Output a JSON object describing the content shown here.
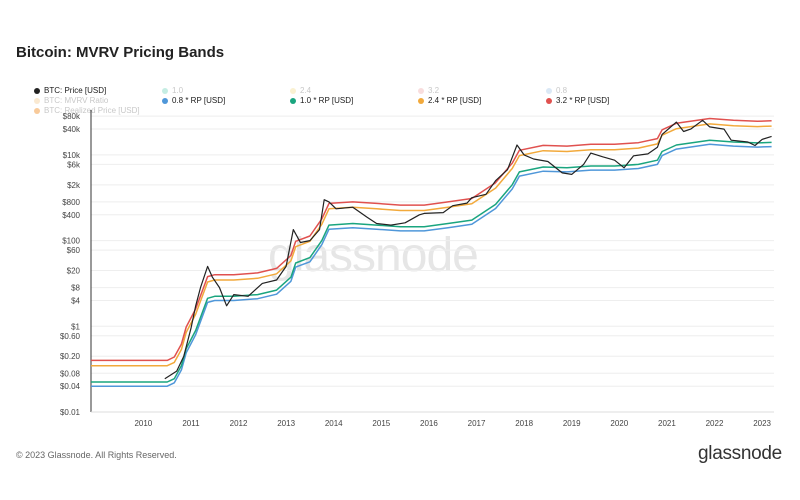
{
  "header": {
    "title": "Bitcoin: MVRV Pricing Bands"
  },
  "legend": {
    "items": [
      {
        "label": "BTC: Price [USD]",
        "color": "#222222",
        "muted": false
      },
      {
        "label": "1.0",
        "color": "#7fd6c0",
        "muted": true
      },
      {
        "label": "2.4",
        "color": "#f5e19a",
        "muted": true
      },
      {
        "label": "3.2",
        "color": "#efb3b3",
        "muted": true
      },
      {
        "label": "0.8",
        "color": "#aecbe8",
        "muted": true
      },
      {
        "label": "BTC: MVRV Ratio",
        "color": "#f3cf9a",
        "muted": true
      },
      {
        "label": "0.8 * RP [USD]",
        "color": "#4f97d9",
        "muted": false
      },
      {
        "label": "1.0 * RP [USD]",
        "color": "#1aa57f",
        "muted": false
      },
      {
        "label": "2.4 * RP [USD]",
        "color": "#f2a93b",
        "muted": false
      },
      {
        "label": "3.2 * RP [USD]",
        "color": "#e0514f",
        "muted": false
      },
      {
        "label": "BTC: Realized Price [USD]",
        "color": "#f08a1e",
        "muted": true
      }
    ]
  },
  "footer": {
    "copyright": "© 2023 Glassnode. All Rights Reserved.",
    "brand": "glassnode"
  },
  "watermark": "glassnode",
  "chart_data": {
    "type": "line",
    "title": "Bitcoin: MVRV Pricing Bands",
    "y_scale": "log",
    "ylim": [
      0.01,
      100000
    ],
    "xlim": [
      2009.0,
      2023.35
    ],
    "y_ticks": [
      {
        "label": "$80k",
        "value": 80000
      },
      {
        "label": "$40k",
        "value": 40000
      },
      {
        "label": "$10k",
        "value": 10000
      },
      {
        "label": "$6k",
        "value": 6000
      },
      {
        "label": "$2k",
        "value": 2000
      },
      {
        "label": "$800",
        "value": 800
      },
      {
        "label": "$400",
        "value": 400
      },
      {
        "label": "$100",
        "value": 100
      },
      {
        "label": "$60",
        "value": 60
      },
      {
        "label": "$20",
        "value": 20
      },
      {
        "label": "$8",
        "value": 8
      },
      {
        "label": "$4",
        "value": 4
      },
      {
        "label": "$1",
        "value": 1
      },
      {
        "label": "$0.60",
        "value": 0.6
      },
      {
        "label": "$0.20",
        "value": 0.2
      },
      {
        "label": "$0.08",
        "value": 0.08
      },
      {
        "label": "$0.04",
        "value": 0.04
      },
      {
        "label": "$0.01",
        "value": 0.01
      }
    ],
    "x_ticks": [
      "2010",
      "2011",
      "2012",
      "2013",
      "2014",
      "2015",
      "2016",
      "2017",
      "2018",
      "2019",
      "2020",
      "2021",
      "2022",
      "2023"
    ],
    "realized_price": [
      [
        2009.0,
        0.05
      ],
      [
        2010.6,
        0.05
      ],
      [
        2010.75,
        0.06
      ],
      [
        2010.9,
        0.12
      ],
      [
        2011.0,
        0.3
      ],
      [
        2011.2,
        0.8
      ],
      [
        2011.45,
        4.5
      ],
      [
        2011.6,
        5.0
      ],
      [
        2012.0,
        5.0
      ],
      [
        2012.5,
        5.5
      ],
      [
        2012.9,
        7.0
      ],
      [
        2013.2,
        14
      ],
      [
        2013.3,
        30
      ],
      [
        2013.6,
        40
      ],
      [
        2013.85,
        100
      ],
      [
        2014.0,
        230
      ],
      [
        2014.5,
        250
      ],
      [
        2015.0,
        230
      ],
      [
        2015.5,
        210
      ],
      [
        2016.0,
        210
      ],
      [
        2016.5,
        250
      ],
      [
        2017.0,
        300
      ],
      [
        2017.5,
        700
      ],
      [
        2017.85,
        2000
      ],
      [
        2018.0,
        4000
      ],
      [
        2018.5,
        5200
      ],
      [
        2019.0,
        5000
      ],
      [
        2019.5,
        5500
      ],
      [
        2020.0,
        5500
      ],
      [
        2020.5,
        6000
      ],
      [
        2020.9,
        7500
      ],
      [
        2021.0,
        12000
      ],
      [
        2021.3,
        17000
      ],
      [
        2022.0,
        22000
      ],
      [
        2022.5,
        20000
      ],
      [
        2023.0,
        19000
      ],
      [
        2023.3,
        19500
      ]
    ],
    "bands": [
      {
        "name": "0.8 * RP [USD]",
        "multiplier": 0.8,
        "color": "#4f97d9"
      },
      {
        "name": "1.0 * RP [USD]",
        "multiplier": 1.0,
        "color": "#1aa57f"
      },
      {
        "name": "2.4 * RP [USD]",
        "multiplier": 2.4,
        "color": "#f2a93b"
      },
      {
        "name": "3.2 * RP [USD]",
        "multiplier": 3.2,
        "color": "#e0514f"
      }
    ],
    "price": {
      "name": "BTC: Price [USD]",
      "color": "#222222",
      "points": [
        [
          2010.55,
          0.06
        ],
        [
          2010.65,
          0.07
        ],
        [
          2010.8,
          0.09
        ],
        [
          2010.95,
          0.2
        ],
        [
          2011.1,
          0.9
        ],
        [
          2011.2,
          3
        ],
        [
          2011.3,
          8
        ],
        [
          2011.45,
          25
        ],
        [
          2011.55,
          14
        ],
        [
          2011.7,
          8
        ],
        [
          2011.85,
          3
        ],
        [
          2012.0,
          5.5
        ],
        [
          2012.3,
          5
        ],
        [
          2012.6,
          10
        ],
        [
          2012.9,
          12
        ],
        [
          2013.1,
          25
        ],
        [
          2013.25,
          180
        ],
        [
          2013.4,
          90
        ],
        [
          2013.6,
          100
        ],
        [
          2013.8,
          180
        ],
        [
          2013.9,
          900
        ],
        [
          2014.0,
          800
        ],
        [
          2014.15,
          550
        ],
        [
          2014.5,
          600
        ],
        [
          2014.8,
          350
        ],
        [
          2015.0,
          250
        ],
        [
          2015.3,
          230
        ],
        [
          2015.6,
          260
        ],
        [
          2015.9,
          400
        ],
        [
          2016.0,
          430
        ],
        [
          2016.4,
          450
        ],
        [
          2016.6,
          650
        ],
        [
          2016.9,
          750
        ],
        [
          2017.0,
          1000
        ],
        [
          2017.3,
          1200
        ],
        [
          2017.5,
          2500
        ],
        [
          2017.75,
          4500
        ],
        [
          2017.95,
          17000
        ],
        [
          2018.1,
          10000
        ],
        [
          2018.3,
          8000
        ],
        [
          2018.6,
          7000
        ],
        [
          2018.9,
          3800
        ],
        [
          2019.1,
          3500
        ],
        [
          2019.35,
          6000
        ],
        [
          2019.5,
          11000
        ],
        [
          2019.75,
          9000
        ],
        [
          2020.0,
          7500
        ],
        [
          2020.2,
          5000
        ],
        [
          2020.4,
          9500
        ],
        [
          2020.7,
          10500
        ],
        [
          2020.9,
          15000
        ],
        [
          2021.0,
          30000
        ],
        [
          2021.3,
          58000
        ],
        [
          2021.45,
          35000
        ],
        [
          2021.6,
          40000
        ],
        [
          2021.85,
          64000
        ],
        [
          2022.0,
          45000
        ],
        [
          2022.3,
          40000
        ],
        [
          2022.45,
          22000
        ],
        [
          2022.8,
          20000
        ],
        [
          2022.95,
          16500
        ],
        [
          2023.1,
          23000
        ],
        [
          2023.3,
          27000
        ]
      ]
    }
  }
}
